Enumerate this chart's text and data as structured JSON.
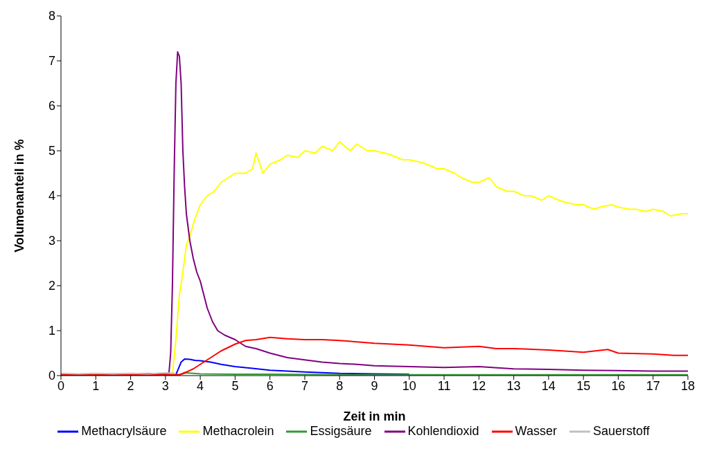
{
  "chart_data": {
    "type": "line",
    "xlabel": "Zeit in min",
    "ylabel": "Volumenanteil in %",
    "xlim": [
      0,
      18
    ],
    "xticks": [
      0,
      1,
      2,
      3,
      4,
      5,
      6,
      7,
      8,
      9,
      10,
      11,
      12,
      13,
      14,
      15,
      16,
      17,
      18
    ],
    "ylim": [
      0,
      8
    ],
    "yticks": [
      0,
      1,
      2,
      3,
      4,
      5,
      6,
      7,
      8
    ],
    "grid": false,
    "legend": "bottom",
    "marker": "none",
    "line_style": "solid",
    "series": [
      {
        "name": "Methacrylsäure",
        "color": "#0000ff",
        "x": [
          0,
          3.3,
          3.45,
          3.55,
          3.7,
          3.85,
          4,
          4.3,
          4.6,
          5,
          5.5,
          6,
          6.5,
          7,
          8,
          9,
          10
        ],
        "values": [
          0.01,
          0.02,
          0.3,
          0.37,
          0.36,
          0.34,
          0.33,
          0.3,
          0.25,
          0.2,
          0.16,
          0.12,
          0.1,
          0.08,
          0.05,
          0.04,
          0.03
        ]
      },
      {
        "name": "Methacrolein",
        "color": "#ffff00",
        "x": [
          0,
          3.2,
          3.3,
          3.4,
          3.5,
          3.6,
          3.7,
          3.85,
          4,
          4.2,
          4.4,
          4.6,
          4.8,
          5,
          5.3,
          5.5,
          5.6,
          5.8,
          6,
          6.3,
          6.5,
          6.8,
          7,
          7.3,
          7.5,
          7.8,
          8,
          8.3,
          8.5,
          8.8,
          9,
          9.3,
          9.5,
          9.8,
          10,
          10.3,
          10.5,
          10.8,
          11,
          11.3,
          11.5,
          11.8,
          12,
          12.3,
          12.5,
          12.8,
          13,
          13.3,
          13.5,
          13.8,
          14,
          14.3,
          14.5,
          14.8,
          15,
          15.3,
          15.5,
          15.8,
          16,
          16.3,
          16.5,
          16.8,
          17,
          17.3,
          17.5,
          17.8,
          18
        ],
        "values": [
          0.03,
          0.03,
          0.8,
          1.8,
          2.3,
          2.9,
          3.1,
          3.5,
          3.8,
          4.0,
          4.1,
          4.3,
          4.4,
          4.5,
          4.5,
          4.6,
          4.95,
          4.5,
          4.7,
          4.8,
          4.9,
          4.85,
          5.0,
          4.95,
          5.1,
          5.0,
          5.2,
          5.0,
          5.15,
          5.0,
          5.0,
          4.95,
          4.9,
          4.8,
          4.8,
          4.75,
          4.7,
          4.6,
          4.6,
          4.5,
          4.4,
          4.3,
          4.3,
          4.4,
          4.2,
          4.1,
          4.1,
          4.0,
          4.0,
          3.9,
          4.0,
          3.9,
          3.85,
          3.8,
          3.8,
          3.7,
          3.75,
          3.8,
          3.75,
          3.7,
          3.7,
          3.65,
          3.7,
          3.65,
          3.55,
          3.6,
          3.6
        ]
      },
      {
        "name": "Essigsäure",
        "color": "#339933",
        "x": [
          0,
          3.4,
          3.6,
          3.8,
          4,
          5,
          6,
          8,
          10,
          12,
          14,
          16,
          18
        ],
        "values": [
          0.02,
          0.02,
          0.06,
          0.05,
          0.04,
          0.03,
          0.03,
          0.02,
          0.02,
          0.02,
          0.02,
          0.02,
          0.02
        ]
      },
      {
        "name": "Kohlendioxid",
        "color": "#800080",
        "x": [
          0,
          3.1,
          3.15,
          3.2,
          3.25,
          3.3,
          3.35,
          3.4,
          3.45,
          3.5,
          3.55,
          3.6,
          3.7,
          3.8,
          3.9,
          4,
          4.1,
          4.2,
          4.35,
          4.5,
          4.7,
          5,
          5.3,
          5.6,
          6,
          6.5,
          7,
          7.5,
          8,
          8.5,
          9,
          10,
          11,
          12,
          13,
          14,
          15,
          16,
          17,
          18
        ],
        "values": [
          0.02,
          0.05,
          0.5,
          2.0,
          4.5,
          6.5,
          7.2,
          7.1,
          6.5,
          5.0,
          4.2,
          3.6,
          3.0,
          2.6,
          2.3,
          2.1,
          1.8,
          1.5,
          1.2,
          1.0,
          0.9,
          0.8,
          0.65,
          0.6,
          0.5,
          0.4,
          0.35,
          0.3,
          0.27,
          0.25,
          0.22,
          0.2,
          0.18,
          0.2,
          0.15,
          0.14,
          0.12,
          0.11,
          0.1,
          0.1
        ]
      },
      {
        "name": "Wasser",
        "color": "#ff0000",
        "x": [
          0,
          3.4,
          3.6,
          3.8,
          4,
          4.3,
          4.6,
          5,
          5.3,
          5.6,
          6,
          6.5,
          7,
          7.5,
          8,
          8.5,
          9,
          9.5,
          10,
          11,
          12,
          12.5,
          13,
          14,
          15,
          15.7,
          16,
          17,
          17.6,
          18
        ],
        "values": [
          0.02,
          0.02,
          0.08,
          0.15,
          0.25,
          0.4,
          0.55,
          0.7,
          0.78,
          0.8,
          0.85,
          0.82,
          0.8,
          0.8,
          0.78,
          0.75,
          0.72,
          0.7,
          0.68,
          0.62,
          0.65,
          0.6,
          0.6,
          0.57,
          0.52,
          0.58,
          0.5,
          0.48,
          0.45,
          0.45
        ]
      },
      {
        "name": "Sauerstoff",
        "color": "#c0c0c0",
        "x": [
          0,
          0.5,
          1,
          1.5,
          2,
          2.5,
          3,
          3.3
        ],
        "values": [
          0.05,
          0.04,
          0.05,
          0.04,
          0.05,
          0.04,
          0.06,
          0.05
        ]
      }
    ]
  }
}
